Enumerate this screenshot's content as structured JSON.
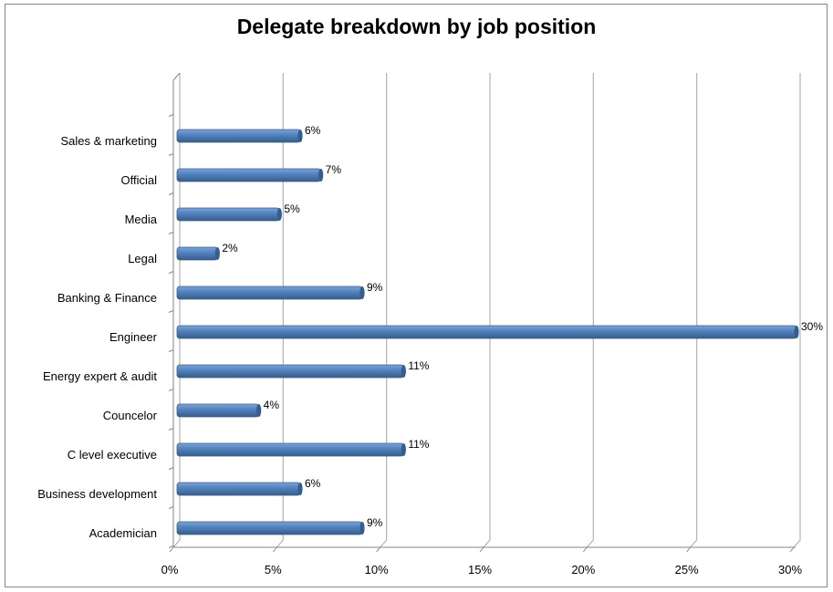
{
  "chart_data": {
    "type": "bar",
    "orientation": "horizontal",
    "title": "Delegate breakdown by job position",
    "categories": [
      "Academician",
      "Business development",
      "C level executive",
      "Councelor",
      "Energy expert & audit",
      "Engineer",
      "Banking & Finance",
      "Legal",
      "Media",
      "Official",
      "Sales & marketing"
    ],
    "values": [
      9,
      6,
      11,
      4,
      11,
      30,
      9,
      2,
      5,
      7,
      6
    ],
    "data_labels": [
      "9%",
      "6%",
      "11%",
      "4%",
      "11%",
      "30%",
      "9%",
      "2%",
      "5%",
      "7%",
      "6%"
    ],
    "xlim": [
      0,
      30
    ],
    "xticks": [
      0,
      5,
      10,
      15,
      20,
      25,
      30
    ],
    "xtick_labels": [
      "0%",
      "5%",
      "10%",
      "15%",
      "20%",
      "25%",
      "30%"
    ],
    "grid": true,
    "bar_color": "#4f81bd",
    "bar_color_dark": "#385d8a",
    "gridline_color": "#b3b3b3"
  }
}
